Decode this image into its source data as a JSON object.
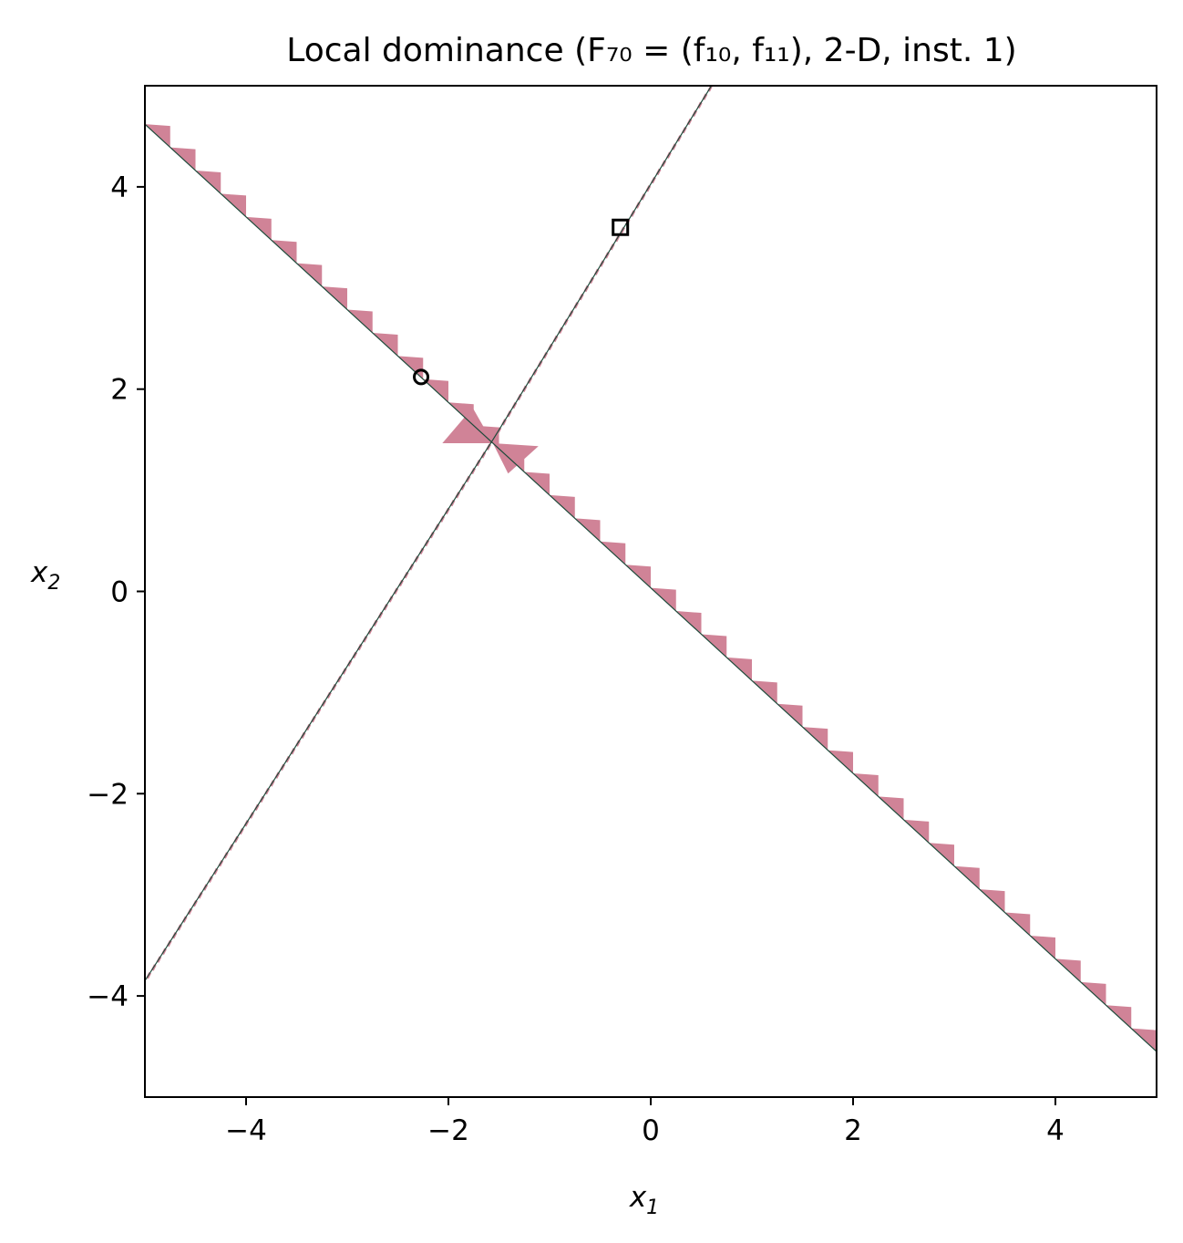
{
  "chart_data": {
    "type": "scatter",
    "title": "Local dominance (F₇₀ = (f₁₀, f₁₁), 2-D, inst. 1)",
    "xlabel": "x",
    "xlabel_sub": "1",
    "ylabel": "x",
    "ylabel_sub": "2",
    "xlim": [
      -5,
      5
    ],
    "ylim": [
      -5,
      5
    ],
    "xticks": [
      -4,
      -2,
      0,
      2,
      4
    ],
    "yticks": [
      -4,
      -2,
      0,
      2,
      4
    ],
    "xtick_labels": [
      "−4",
      "−2",
      "0",
      "2",
      "4"
    ],
    "ytick_labels": [
      "−4",
      "−2",
      "0",
      "2",
      "4"
    ],
    "grid": false,
    "colors": {
      "region": "#d08397",
      "ridge": "#1d4a3a",
      "marker": "#000000"
    },
    "lines": [
      {
        "x": [
          -5,
          5
        ],
        "y": [
          4.62,
          -4.55
        ]
      },
      {
        "x": [
          -5,
          -1.56,
          0.6
        ],
        "y": [
          -3.85,
          1.5,
          5.0
        ]
      }
    ],
    "markers": [
      {
        "shape": "circle",
        "x": -2.27,
        "y": 2.12
      },
      {
        "shape": "square",
        "x": -0.3,
        "y": 3.6
      }
    ]
  }
}
